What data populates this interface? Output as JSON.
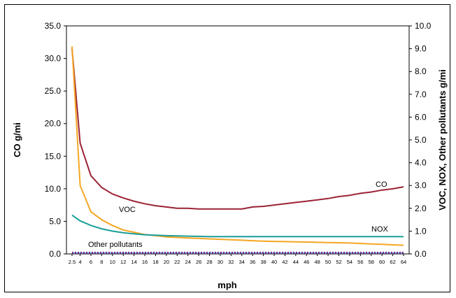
{
  "chart_data": {
    "type": "line",
    "title": "",
    "xlabel": "mph",
    "ylabel_left": "CO g/mi",
    "ylabel_right": "VOC, NOX, Other pollutants g/mi",
    "x_ticks": [
      "2.5",
      "4",
      "6",
      "8",
      "10",
      "12",
      "14",
      "16",
      "18",
      "20",
      "22",
      "24",
      "26",
      "28",
      "30",
      "32",
      "34",
      "36",
      "38",
      "40",
      "42",
      "44",
      "46",
      "48",
      "50",
      "52",
      "54",
      "56",
      "58",
      "60",
      "62",
      "64"
    ],
    "y_left_ticks": [
      "0.0",
      "5.0",
      "10.0",
      "15.0",
      "20.0",
      "25.0",
      "30.0",
      "35.0"
    ],
    "y_right_ticks": [
      "0.0",
      "1.0",
      "2.0",
      "3.0",
      "4.0",
      "5.0",
      "6.0",
      "7.0",
      "8.0",
      "9.0",
      "10.0"
    ],
    "ylim_left": [
      0,
      35
    ],
    "ylim_right": [
      0,
      10
    ],
    "xlim": [
      2.5,
      64
    ],
    "grid": false,
    "series": [
      {
        "name": "CO",
        "axis": "left",
        "color": "#9b2335",
        "x": [
          2.5,
          4,
          6,
          8,
          10,
          12,
          14,
          16,
          18,
          20,
          22,
          24,
          26,
          28,
          30,
          32,
          34,
          36,
          38,
          40,
          42,
          44,
          46,
          48,
          50,
          52,
          54,
          56,
          58,
          60,
          62,
          64
        ],
        "y": [
          31.5,
          17.0,
          12.0,
          10.2,
          9.2,
          8.6,
          8.1,
          7.7,
          7.4,
          7.2,
          7.0,
          7.0,
          6.9,
          6.9,
          6.9,
          6.9,
          6.9,
          7.2,
          7.3,
          7.5,
          7.7,
          7.9,
          8.1,
          8.3,
          8.5,
          8.8,
          9.0,
          9.3,
          9.5,
          9.8,
          10.0,
          10.3
        ]
      },
      {
        "name": "VOC",
        "axis": "right",
        "color": "#f5a623",
        "x": [
          2.5,
          4,
          6,
          8,
          10,
          12,
          14,
          16,
          18,
          20,
          22,
          24,
          26,
          28,
          30,
          32,
          34,
          36,
          38,
          40,
          42,
          44,
          46,
          48,
          50,
          52,
          54,
          56,
          58,
          60,
          62,
          64
        ],
        "y": [
          9.1,
          3.0,
          1.85,
          1.5,
          1.25,
          1.05,
          0.95,
          0.85,
          0.8,
          0.75,
          0.72,
          0.7,
          0.68,
          0.66,
          0.64,
          0.62,
          0.6,
          0.58,
          0.56,
          0.55,
          0.54,
          0.53,
          0.52,
          0.51,
          0.5,
          0.49,
          0.48,
          0.46,
          0.44,
          0.42,
          0.4,
          0.38
        ]
      },
      {
        "name": "NOX",
        "axis": "right",
        "color": "#1a9e9a",
        "x": [
          2.5,
          4,
          6,
          8,
          10,
          12,
          14,
          16,
          18,
          20,
          22,
          24,
          26,
          28,
          30,
          32,
          34,
          36,
          38,
          40,
          42,
          44,
          46,
          48,
          50,
          52,
          54,
          56,
          58,
          60,
          62,
          64
        ],
        "y": [
          1.7,
          1.45,
          1.25,
          1.1,
          1.0,
          0.93,
          0.88,
          0.84,
          0.82,
          0.8,
          0.79,
          0.78,
          0.77,
          0.76,
          0.76,
          0.76,
          0.76,
          0.76,
          0.76,
          0.76,
          0.76,
          0.76,
          0.76,
          0.76,
          0.76,
          0.76,
          0.76,
          0.76,
          0.76,
          0.76,
          0.76,
          0.76
        ]
      },
      {
        "name": "Other pollutants",
        "axis": "right",
        "color": "#7b2d8e",
        "x": [
          2.5,
          4,
          6,
          8,
          10,
          12,
          14,
          16,
          18,
          20,
          22,
          24,
          26,
          28,
          30,
          32,
          34,
          36,
          38,
          40,
          42,
          44,
          46,
          48,
          50,
          52,
          54,
          56,
          58,
          60,
          62,
          64
        ],
        "y": [
          0.05,
          0.05,
          0.05,
          0.05,
          0.05,
          0.05,
          0.05,
          0.05,
          0.05,
          0.05,
          0.05,
          0.05,
          0.05,
          0.05,
          0.05,
          0.05,
          0.05,
          0.05,
          0.05,
          0.05,
          0.05,
          0.05,
          0.05,
          0.05,
          0.05,
          0.05,
          0.05,
          0.05,
          0.05,
          0.05,
          0.05,
          0.05
        ]
      }
    ],
    "annotations": [
      {
        "text": "CO",
        "series": "CO"
      },
      {
        "text": "VOC",
        "series": "VOC"
      },
      {
        "text": "NOX",
        "series": "NOX"
      },
      {
        "text": "Other pollutants",
        "series": "Other pollutants"
      }
    ]
  }
}
